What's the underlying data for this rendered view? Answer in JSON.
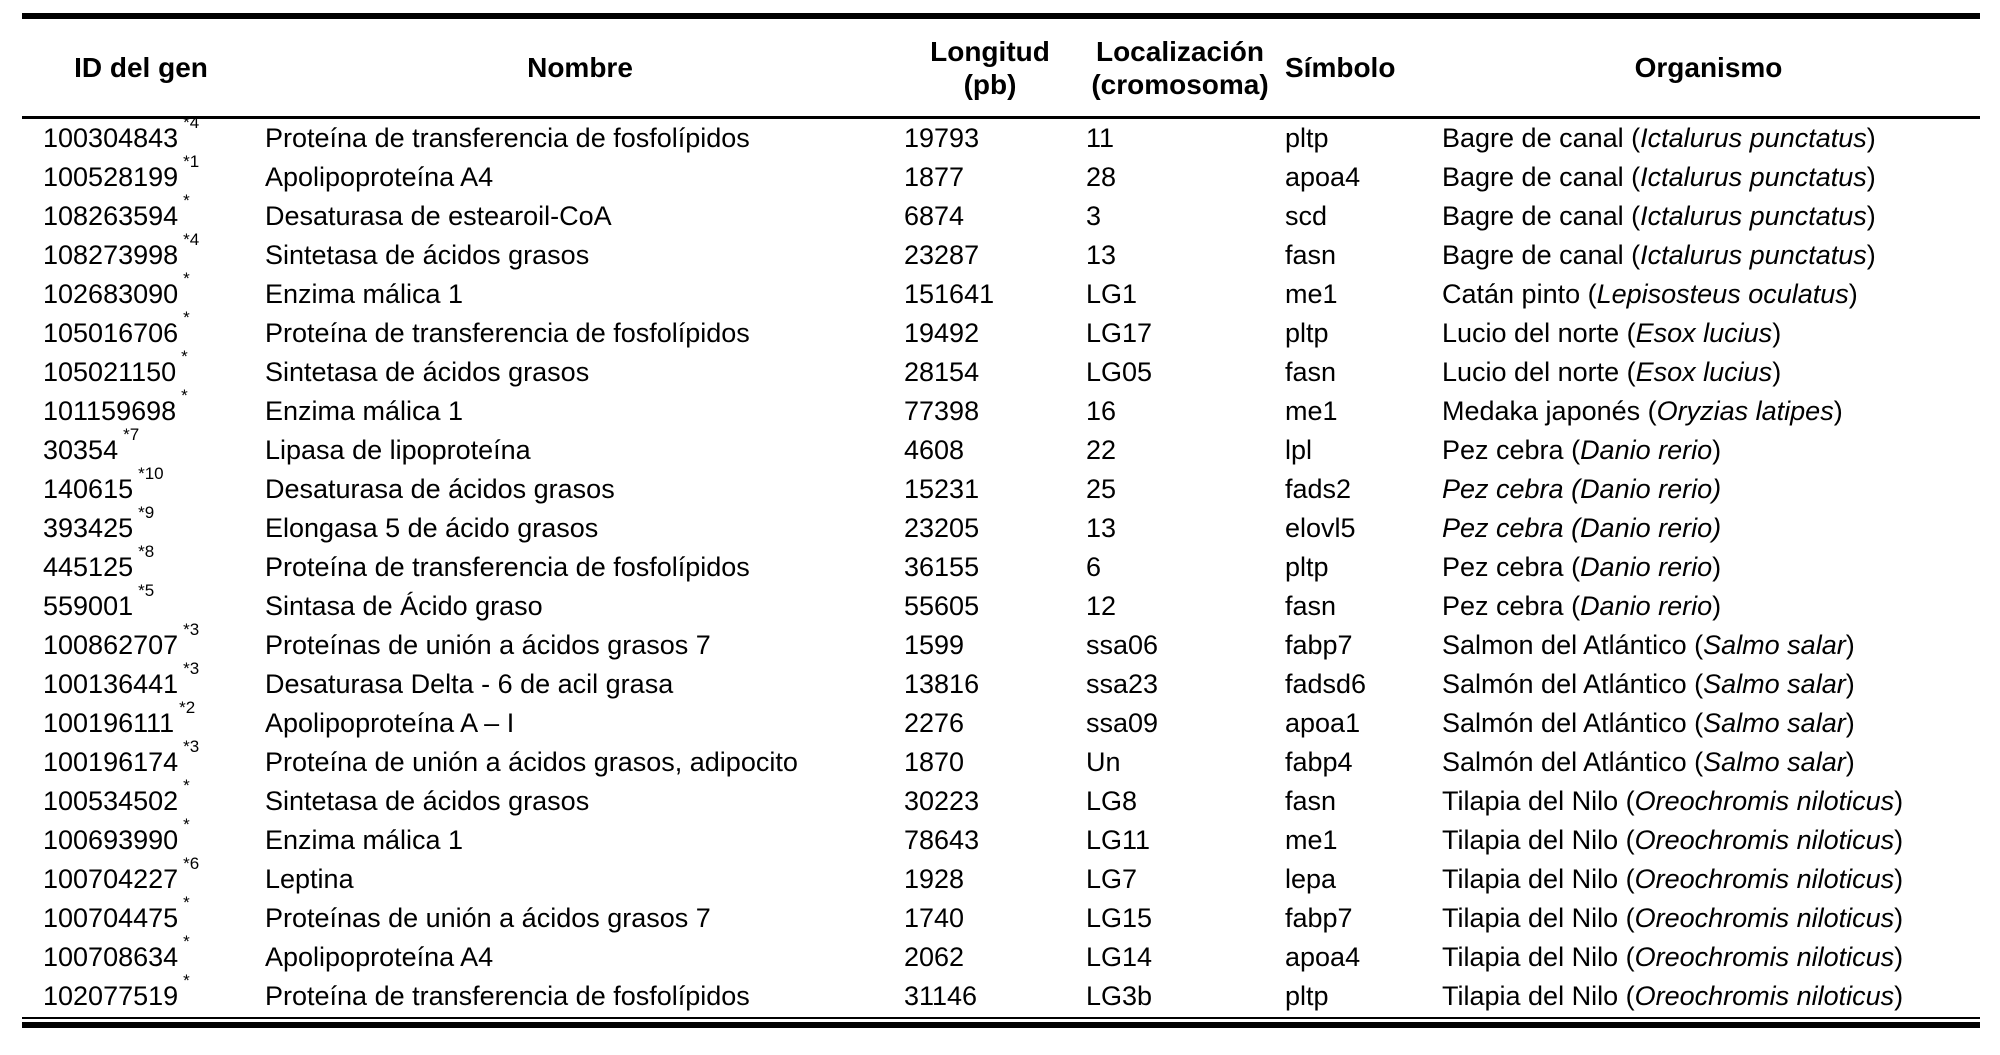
{
  "page": {
    "background": "#ffffff",
    "text_color": "#000000",
    "rule_color": "#000000"
  },
  "table": {
    "headers": {
      "id": "ID del gen",
      "name": "Nombre",
      "length_line1": "Longitud",
      "length_line2": "(pb)",
      "location_line1": "Localización",
      "location_line2": "(cromosoma)",
      "symbol": "Símbolo",
      "organism": "Organismo"
    },
    "rows": [
      {
        "id": "100304843",
        "footnote": "*4",
        "name": "Proteína de transferencia de fosfolípidos",
        "length": "19793",
        "location": "11",
        "symbol": "pltp",
        "organism_common": "Bagre de canal",
        "organism_scientific": "Ictalurus punctatus"
      },
      {
        "id": "100528199",
        "footnote": "*1",
        "name": "Apolipoproteína A4",
        "length": "1877",
        "location": "28",
        "symbol": "apoa4",
        "organism_common": "Bagre de canal",
        "organism_scientific": "Ictalurus punctatus"
      },
      {
        "id": "108263594",
        "footnote": "*",
        "name": "Desaturasa de estearoil-CoA",
        "length": "6874",
        "location": "3",
        "symbol": "scd",
        "organism_common": "Bagre de canal",
        "organism_scientific": "Ictalurus punctatus"
      },
      {
        "id": "108273998",
        "footnote": "*4",
        "name": "Sintetasa de ácidos grasos",
        "length": "23287",
        "location": "13",
        "symbol": "fasn",
        "organism_common": "Bagre de canal",
        "organism_scientific": "Ictalurus punctatus"
      },
      {
        "id": "102683090",
        "footnote": "*",
        "name": "Enzima málica 1",
        "length": "151641",
        "location": "LG1",
        "symbol": "me1",
        "organism_common": "Catán pinto",
        "organism_scientific": "Lepisosteus oculatus"
      },
      {
        "id": "105016706",
        "footnote": "*",
        "name": "Proteína de transferencia de fosfolípidos",
        "length": "19492",
        "location": "LG17",
        "symbol": "pltp",
        "organism_common": "Lucio del norte",
        "organism_scientific": "Esox lucius"
      },
      {
        "id": "105021150",
        "footnote": "*",
        "name": "Sintetasa de ácidos grasos",
        "length": "28154",
        "location": "LG05",
        "symbol": "fasn",
        "organism_common": "Lucio del norte",
        "organism_scientific": "Esox lucius"
      },
      {
        "id": "101159698",
        "footnote": "*",
        "name": "Enzima málica 1",
        "length": "77398",
        "location": "16",
        "symbol": "me1",
        "organism_common": "Medaka japonés",
        "organism_scientific": "Oryzias latipes"
      },
      {
        "id": "30354",
        "footnote": "*7",
        "name": "Lipasa de lipoproteína",
        "length": "4608",
        "location": "22",
        "symbol": "lpl",
        "organism_common": "Pez cebra",
        "organism_scientific": "Danio rerio"
      },
      {
        "id": "140615",
        "footnote": "*10",
        "name": "Desaturasa de ácidos grasos",
        "length": "15231",
        "location": "25",
        "symbol": "fads2",
        "organism_common": "Pez cebra",
        "organism_scientific": "Danio rerio",
        "organism_all_italic": true
      },
      {
        "id": "393425",
        "footnote": "*9",
        "name": "Elongasa 5 de ácido grasos",
        "length": "23205",
        "location": "13",
        "symbol": "elovl5",
        "organism_common": "Pez cebra",
        "organism_scientific": "Danio rerio",
        "organism_all_italic": true
      },
      {
        "id": "445125",
        "footnote": "*8",
        "name": "Proteína de transferencia de fosfolípidos",
        "length": "36155",
        "location": "6",
        "symbol": "pltp",
        "organism_common": "Pez cebra",
        "organism_scientific": "Danio rerio"
      },
      {
        "id": "559001",
        "footnote": "*5",
        "name": "Sintasa de Ácido graso",
        "length": "55605",
        "location": "12",
        "symbol": "fasn",
        "organism_common": "Pez cebra",
        "organism_scientific": "Danio rerio"
      },
      {
        "id": "100862707",
        "footnote": "*3",
        "name": "Proteínas de unión a ácidos grasos 7",
        "length": "1599",
        "location": "ssa06",
        "symbol": "fabp7",
        "organism_common": "Salmon del Atlántico",
        "organism_scientific": "Salmo salar"
      },
      {
        "id": "100136441",
        "footnote": "*3",
        "name": "Desaturasa Delta - 6 de acil grasa",
        "length": "13816",
        "location": "ssa23",
        "symbol": "fadsd6",
        "organism_common": "Salmón del Atlántico",
        "organism_scientific": "Salmo salar"
      },
      {
        "id": "100196111",
        "footnote": "*2",
        "name": "Apolipoproteína A – I",
        "length": "2276",
        "location": "ssa09",
        "symbol": "apoa1",
        "organism_common": "Salmón del Atlántico",
        "organism_scientific": "Salmo salar"
      },
      {
        "id": "100196174",
        "footnote": "*3",
        "name": "Proteína de unión a ácidos grasos, adipocito",
        "length": "1870",
        "location": "Un",
        "symbol": "fabp4",
        "organism_common": "Salmón del Atlántico",
        "organism_scientific": "Salmo salar"
      },
      {
        "id": "100534502",
        "footnote": "*",
        "name": "Sintetasa de ácidos grasos",
        "length": "30223",
        "location": "LG8",
        "symbol": "fasn",
        "organism_common": "Tilapia del Nilo",
        "organism_scientific": "Oreochromis niloticus"
      },
      {
        "id": "100693990",
        "footnote": "*",
        "name": "Enzima málica 1",
        "length": "78643",
        "location": "LG11",
        "symbol": "me1",
        "organism_common": "Tilapia del Nilo",
        "organism_scientific": "Oreochromis niloticus"
      },
      {
        "id": "100704227",
        "footnote": "*6",
        "name": "Leptina",
        "length": "1928",
        "location": "LG7",
        "symbol": "lepa",
        "organism_common": "Tilapia del Nilo",
        "organism_scientific": "Oreochromis niloticus"
      },
      {
        "id": "100704475",
        "footnote": "*",
        "name": "Proteínas de unión a ácidos grasos 7",
        "length": "1740",
        "location": "LG15",
        "symbol": "fabp7",
        "organism_common": "Tilapia del Nilo",
        "organism_scientific": "Oreochromis niloticus"
      },
      {
        "id": "100708634",
        "footnote": "*",
        "name": "Apolipoproteína A4",
        "length": "2062",
        "location": "LG14",
        "symbol": "apoa4",
        "organism_common": "Tilapia del Nilo",
        "organism_scientific": "Oreochromis niloticus"
      },
      {
        "id": "102077519",
        "footnote": "*",
        "name": "Proteína de transferencia de fosfolípidos",
        "length": "31146",
        "location": "LG3b",
        "symbol": "pltp",
        "organism_common": "Tilapia del Nilo",
        "organism_scientific": "Oreochromis niloticus"
      }
    ]
  }
}
